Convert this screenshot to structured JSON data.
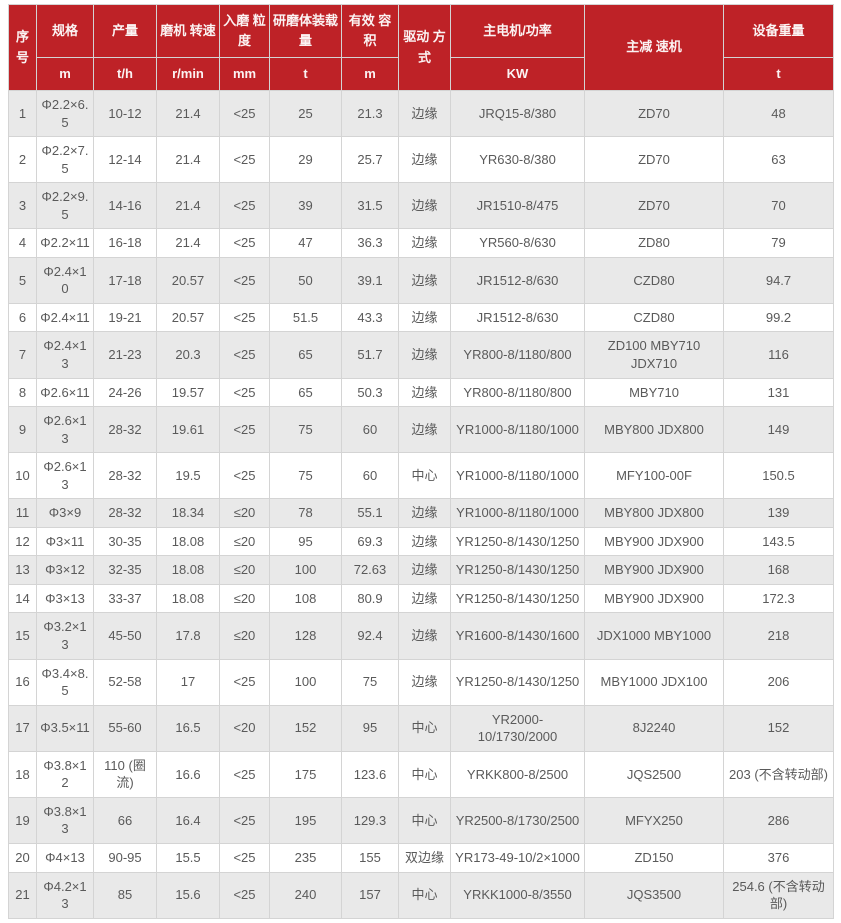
{
  "colors": {
    "header_bg": "#be2227",
    "header_text": "#fbf3f3",
    "row_alt_bg": "#e9e9e9",
    "row_bg": "#ffffff",
    "border": "#d4d4d4",
    "body_text": "#5a5a5a"
  },
  "table": {
    "columns": [
      {
        "label": "序号",
        "unit": ""
      },
      {
        "label": "规格",
        "unit": "m"
      },
      {
        "label": "产量",
        "unit": "t/h"
      },
      {
        "label": "磨机 转速",
        "unit": "r/min"
      },
      {
        "label": "入磨 粒度",
        "unit": "mm"
      },
      {
        "label": "研磨体装载量",
        "unit": "t"
      },
      {
        "label": "有效 容积",
        "unit": "m"
      },
      {
        "label": "驱动 方式",
        "unit": ""
      },
      {
        "label": "主电机/功率",
        "unit": "KW"
      },
      {
        "label": "主减 速机",
        "unit": ""
      },
      {
        "label": "设备重量",
        "unit": "t"
      }
    ],
    "rows": [
      {
        "no": "1",
        "spec": "Φ2.2×6.5",
        "output": "10-12",
        "speed": "21.4",
        "feed": "<25",
        "media": "25",
        "volume": "21.3",
        "drive": "边缘",
        "motor": "JRQ15-8/380",
        "reducer": "ZD70",
        "weight": "48"
      },
      {
        "no": "2",
        "spec": "Φ2.2×7.5",
        "output": "12-14",
        "speed": "21.4",
        "feed": "<25",
        "media": "29",
        "volume": "25.7",
        "drive": "边缘",
        "motor": "YR630-8/380",
        "reducer": "ZD70",
        "weight": "63"
      },
      {
        "no": "3",
        "spec": "Φ2.2×9.5",
        "output": "14-16",
        "speed": "21.4",
        "feed": "<25",
        "media": "39",
        "volume": "31.5",
        "drive": "边缘",
        "motor": "JR1510-8/475",
        "reducer": "ZD70",
        "weight": "70"
      },
      {
        "no": "4",
        "spec": "Φ2.2×11",
        "output": "16-18",
        "speed": "21.4",
        "feed": "<25",
        "media": "47",
        "volume": "36.3",
        "drive": "边缘",
        "motor": "YR560-8/630",
        "reducer": "ZD80",
        "weight": "79"
      },
      {
        "no": "5",
        "spec": "Φ2.4×10",
        "output": "17-18",
        "speed": "20.57",
        "feed": "<25",
        "media": "50",
        "volume": "39.1",
        "drive": "边缘",
        "motor": "JR1512-8/630",
        "reducer": "CZD80",
        "weight": "94.7"
      },
      {
        "no": "6",
        "spec": "Φ2.4×11",
        "output": "19-21",
        "speed": "20.57",
        "feed": "<25",
        "media": "51.5",
        "volume": "43.3",
        "drive": "边缘",
        "motor": "JR1512-8/630",
        "reducer": "CZD80",
        "weight": "99.2"
      },
      {
        "no": "7",
        "spec": "Φ2.4×13",
        "output": "21-23",
        "speed": "20.3",
        "feed": "<25",
        "media": "65",
        "volume": "51.7",
        "drive": "边缘",
        "motor": "YR800-8/1180/800",
        "reducer": "ZD100 MBY710\nJDX710",
        "weight": "116"
      },
      {
        "no": "8",
        "spec": "Φ2.6×11",
        "output": "24-26",
        "speed": "19.57",
        "feed": "<25",
        "media": "65",
        "volume": "50.3",
        "drive": "边缘",
        "motor": "YR800-8/1180/800",
        "reducer": "MBY710",
        "weight": "131"
      },
      {
        "no": "9",
        "spec": "Φ2.6×13",
        "output": "28-32",
        "speed": "19.61",
        "feed": "<25",
        "media": "75",
        "volume": "60",
        "drive": "边缘",
        "motor": "YR1000-8/1180/1000",
        "reducer": "MBY800 JDX800",
        "weight": "149"
      },
      {
        "no": "10",
        "spec": "Φ2.6×13",
        "output": "28-32",
        "speed": "19.5",
        "feed": "<25",
        "media": "75",
        "volume": "60",
        "drive": "中心",
        "motor": "YR1000-8/1180/1000",
        "reducer": "MFY100-00F",
        "weight": "150.5"
      },
      {
        "no": "11",
        "spec": "Φ3×9",
        "output": "28-32",
        "speed": "18.34",
        "feed": "≤20",
        "media": "78",
        "volume": "55.1",
        "drive": "边缘",
        "motor": "YR1000-8/1180/1000",
        "reducer": "MBY800 JDX800",
        "weight": "139"
      },
      {
        "no": "12",
        "spec": "Φ3×11",
        "output": "30-35",
        "speed": "18.08",
        "feed": "≤20",
        "media": "95",
        "volume": "69.3",
        "drive": "边缘",
        "motor": "YR1250-8/1430/1250",
        "reducer": "MBY900 JDX900",
        "weight": "143.5"
      },
      {
        "no": "13",
        "spec": "Φ3×12",
        "output": "32-35",
        "speed": "18.08",
        "feed": "≤20",
        "media": "100",
        "volume": "72.63",
        "drive": "边缘",
        "motor": "YR1250-8/1430/1250",
        "reducer": "MBY900 JDX900",
        "weight": "168"
      },
      {
        "no": "14",
        "spec": "Φ3×13",
        "output": "33-37",
        "speed": "18.08",
        "feed": "≤20",
        "media": "108",
        "volume": "80.9",
        "drive": "边缘",
        "motor": "YR1250-8/1430/1250",
        "reducer": "MBY900 JDX900",
        "weight": "172.3"
      },
      {
        "no": "15",
        "spec": "Φ3.2×13",
        "output": "45-50",
        "speed": "17.8",
        "feed": "≤20",
        "media": "128",
        "volume": "92.4",
        "drive": "边缘",
        "motor": "YR1600-8/1430/1600",
        "reducer": "JDX1000 MBY1000",
        "weight": "218"
      },
      {
        "no": "16",
        "spec": "Φ3.4×8.5",
        "output": "52-58",
        "speed": "17",
        "feed": "<25",
        "media": "100",
        "volume": "75",
        "drive": "边缘",
        "motor": "YR1250-8/1430/1250",
        "reducer": "MBY1000 JDX100",
        "weight": "206"
      },
      {
        "no": "17",
        "spec": "Φ3.5×11",
        "output": "55-60",
        "speed": "16.5",
        "feed": "<20",
        "media": "152",
        "volume": "95",
        "drive": "中心",
        "motor": "YR2000-\n10/1730/2000",
        "reducer": "8J2240",
        "weight": "152"
      },
      {
        "no": "18",
        "spec": "Φ3.8×12",
        "output": "110 (圈流)",
        "speed": "16.6",
        "feed": "<25",
        "media": "175",
        "volume": "123.6",
        "drive": "中心",
        "motor": "YRKK800-8/2500",
        "reducer": "JQS2500",
        "weight": "203 (不含转动部)"
      },
      {
        "no": "19",
        "spec": "Φ3.8×13",
        "output": "66",
        "speed": "16.4",
        "feed": "<25",
        "media": "195",
        "volume": "129.3",
        "drive": "中心",
        "motor": "YR2500-8/1730/2500",
        "reducer": "MFYX250",
        "weight": "286"
      },
      {
        "no": "20",
        "spec": "Φ4×13",
        "output": "90-95",
        "speed": "15.5",
        "feed": "<25",
        "media": "235",
        "volume": "155",
        "drive": "双边缘",
        "motor": "YR173-49-10/2×1000",
        "reducer": "ZD150",
        "weight": "376"
      },
      {
        "no": "21",
        "spec": "Φ4.2×13",
        "output": "85",
        "speed": "15.6",
        "feed": "<25",
        "media": "240",
        "volume": "157",
        "drive": "中心",
        "motor": "YRKK1000-8/3550",
        "reducer": "JQS3500",
        "weight": "254.6 (不含转动部)"
      }
    ]
  }
}
